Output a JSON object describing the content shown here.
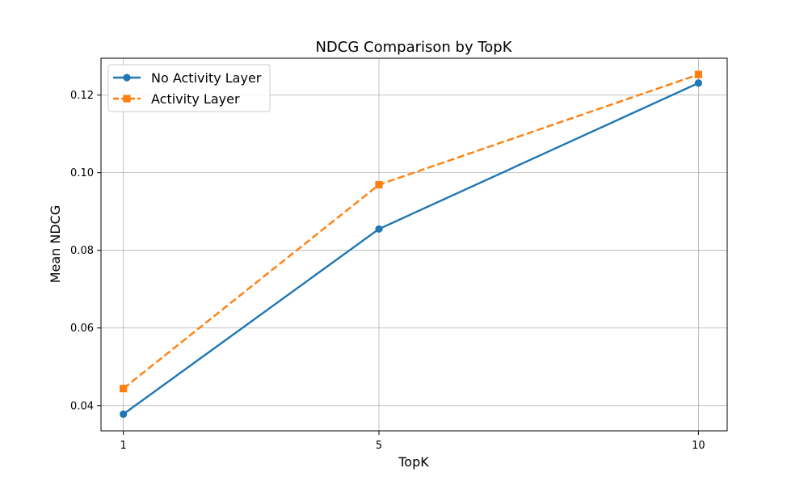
{
  "chart_data": {
    "type": "line",
    "title": "NDCG Comparison by TopK",
    "xlabel": "TopK",
    "ylabel": "Mean NDCG",
    "x": [
      1,
      5,
      10
    ],
    "x_tick_labels": [
      "1",
      "5",
      "10"
    ],
    "xlim": [
      0.65,
      10.45
    ],
    "ylim": [
      0.0335,
      0.1295
    ],
    "y_ticks": [
      0.04,
      0.06,
      0.08,
      0.1,
      0.12
    ],
    "y_tick_labels": [
      "0.04",
      "0.06",
      "0.08",
      "0.10",
      "0.12"
    ],
    "grid": true,
    "legend_position": "upper-left",
    "series": [
      {
        "name": "No Activity Layer",
        "values": [
          0.0378,
          0.0855,
          0.1231
        ],
        "color": "#1f77b4",
        "line_style": "solid",
        "marker": "circle"
      },
      {
        "name": "Activity Layer",
        "values": [
          0.0444,
          0.0969,
          0.1253
        ],
        "color": "#ff7f0e",
        "line_style": "dashed",
        "marker": "square"
      }
    ]
  }
}
